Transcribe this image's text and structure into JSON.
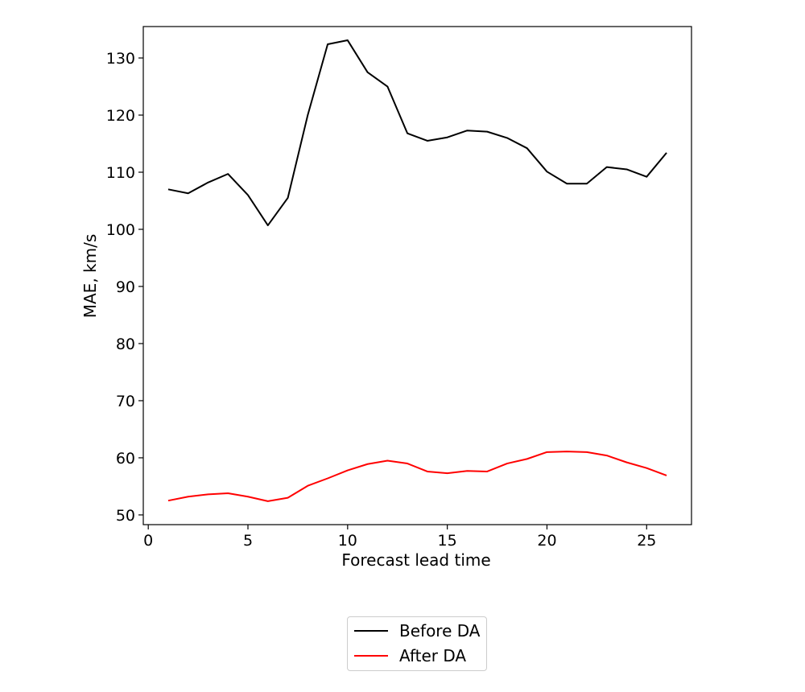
{
  "chart_data": {
    "type": "line",
    "title": "",
    "xlabel": "Forecast lead time",
    "ylabel": "MAE, km/s",
    "xlim": [
      -0.25,
      27.25
    ],
    "ylim": [
      48.3,
      135.5
    ],
    "xticks": [
      0,
      5,
      10,
      15,
      20,
      25
    ],
    "yticks": [
      50,
      60,
      70,
      80,
      90,
      100,
      110,
      120,
      130
    ],
    "x": [
      1,
      2,
      3,
      4,
      5,
      6,
      7,
      8,
      9,
      10,
      11,
      12,
      13,
      14,
      15,
      16,
      17,
      18,
      19,
      20,
      21,
      22,
      23,
      24,
      25,
      26
    ],
    "series": [
      {
        "name": "Before DA",
        "color": "#000000",
        "values": [
          107.0,
          106.3,
          108.2,
          109.7,
          106.0,
          100.7,
          105.5,
          120.0,
          132.4,
          133.1,
          127.5,
          125.0,
          116.8,
          115.5,
          116.1,
          117.3,
          117.1,
          116.0,
          114.2,
          110.1,
          108.0,
          108.0,
          110.9,
          110.5,
          109.2,
          113.4
        ]
      },
      {
        "name": "After DA",
        "color": "#ff0000",
        "values": [
          52.5,
          53.2,
          53.6,
          53.8,
          53.2,
          52.4,
          53.0,
          55.1,
          56.4,
          57.8,
          58.9,
          59.5,
          59.0,
          57.6,
          57.3,
          57.7,
          57.6,
          59.0,
          59.8,
          61.0,
          61.1,
          61.0,
          60.4,
          59.2,
          58.2,
          56.9
        ]
      }
    ],
    "legend_position": "below"
  }
}
